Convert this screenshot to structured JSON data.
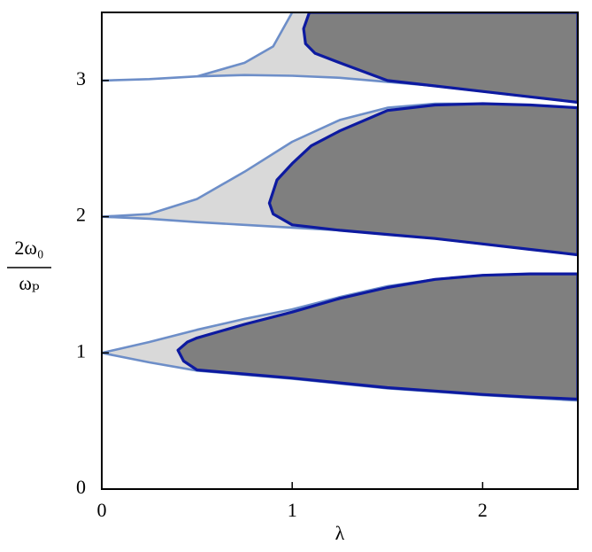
{
  "chart_data": {
    "type": "region",
    "xlabel": "λ",
    "ylabel": {
      "numerator": "2ω₀",
      "denominator": "ωₚ"
    },
    "xlim": [
      0,
      2.5
    ],
    "ylim": [
      0,
      3.5
    ],
    "xticks": [
      0,
      1,
      2
    ],
    "yticks": [
      0,
      1,
      2,
      3
    ],
    "regions": [
      {
        "color": "#d9d9d9",
        "edge": "#6d8ec8",
        "x": [
          0,
          0.25,
          0.5,
          0.75,
          1,
          1.25,
          1.5,
          1.75,
          2,
          2.25,
          2.5,
          2.5,
          2.25,
          2,
          1.75,
          1.5,
          1.25,
          1,
          0.75,
          0.5,
          0.25
        ],
        "y": [
          1,
          1.08,
          1.17,
          1.25,
          1.32,
          1.41,
          1.49,
          1.54,
          1.57,
          1.58,
          1.58,
          0.65,
          0.67,
          0.69,
          0.715,
          0.74,
          0.775,
          0.81,
          0.84,
          0.87,
          0.93
        ]
      },
      {
        "color": "#7f7f7f",
        "edge": "#0d1aa0",
        "x": [
          0.4,
          0.45,
          0.5,
          0.75,
          1,
          1.25,
          1.5,
          1.75,
          2,
          2.25,
          2.5,
          2.5,
          2.25,
          2,
          1.75,
          1.5,
          1.25,
          1,
          0.75,
          0.5,
          0.43
        ],
        "y": [
          1.02,
          1.08,
          1.11,
          1.21,
          1.3,
          1.4,
          1.48,
          1.54,
          1.57,
          1.58,
          1.58,
          0.66,
          0.675,
          0.695,
          0.72,
          0.745,
          0.78,
          0.815,
          0.845,
          0.875,
          0.94
        ]
      },
      {
        "color": "#d9d9d9",
        "edge": "#6d8ec8",
        "x": [
          0,
          0.25,
          0.5,
          0.75,
          1,
          1.25,
          1.5,
          1.75,
          2,
          2.25,
          2.5,
          2.5,
          2.25,
          2,
          1.75,
          1.5,
          1.25,
          1,
          0.75,
          0.5,
          0.25
        ],
        "y": [
          2,
          2.02,
          2.13,
          2.33,
          2.55,
          2.71,
          2.8,
          2.83,
          2.83,
          2.82,
          2.8,
          1.72,
          1.76,
          1.8,
          1.84,
          1.87,
          1.9,
          1.92,
          1.94,
          1.96,
          1.985
        ]
      },
      {
        "color": "#7f7f7f",
        "edge": "#0d1aa0",
        "x": [
          0.88,
          0.92,
          1,
          1.1,
          1.25,
          1.5,
          1.75,
          2,
          2.25,
          2.5,
          2.5,
          2.25,
          2,
          1.75,
          1.5,
          1.25,
          1,
          0.9
        ],
        "y": [
          2.1,
          2.27,
          2.39,
          2.52,
          2.63,
          2.78,
          2.82,
          2.83,
          2.82,
          2.8,
          1.72,
          1.76,
          1.8,
          1.84,
          1.87,
          1.9,
          1.94,
          2.02
        ]
      },
      {
        "color": "#d9d9d9",
        "edge": "#6d8ec8",
        "x": [
          0,
          0.25,
          0.5,
          0.75,
          0.9,
          1,
          2.5,
          2.5,
          2.25,
          2,
          1.75,
          1.5,
          1.25,
          1,
          0.75,
          0.5,
          0.25
        ],
        "y": [
          3,
          3.01,
          3.03,
          3.13,
          3.25,
          3.5,
          3.5,
          2.84,
          2.88,
          2.92,
          2.96,
          2.99,
          3.02,
          3.035,
          3.04,
          3.03,
          3.01
        ]
      },
      {
        "color": "#7f7f7f",
        "edge": "#0d1aa0",
        "x": [
          1.09,
          1.06,
          1.07,
          1.12,
          1.25,
          1.5,
          1.75,
          2,
          2.25,
          2.5,
          2.5
        ],
        "y": [
          3.5,
          3.38,
          3.27,
          3.2,
          3.13,
          3,
          2.96,
          2.92,
          2.88,
          2.84,
          3.5
        ]
      }
    ]
  }
}
